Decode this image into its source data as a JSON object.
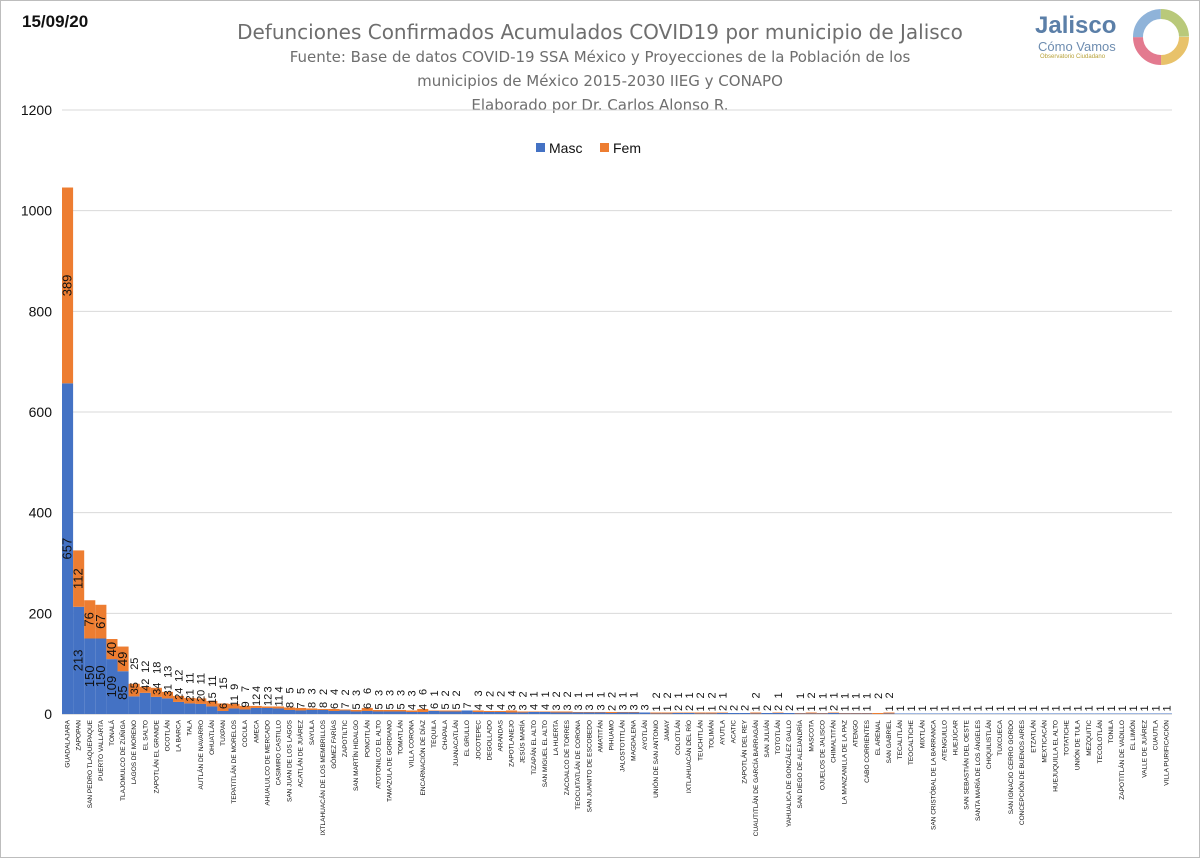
{
  "date": "15/09/20",
  "logo": {
    "name": "Jalisco",
    "subtitle": "Cómo Vamos",
    "tagline": "Observatorio Ciudadano"
  },
  "colors": {
    "masc": "#4472c4",
    "fem": "#ed7d31",
    "grid": "#d9d9d9",
    "text": "#595959"
  },
  "chart_data": {
    "type": "bar",
    "stacked": true,
    "title": "Defunciones Confirmados Acumulados COVID19 por municipio de Jalisco",
    "subtitle": [
      "Fuente: Base de datos COVID-19 SSA México y Proyecciones de la Población de los",
      "municipios de México 2015-2030 IIEG y CONAPO",
      "Elaborado por Dr. Carlos Alonso R."
    ],
    "xlabel": "",
    "ylabel": "",
    "ylim": [
      0,
      1200
    ],
    "yticks": [
      0,
      200,
      400,
      600,
      800,
      1000,
      1200
    ],
    "grid": true,
    "legend_position": "top-center",
    "categories": [
      "GUADALAJARA",
      "ZAPOPAN",
      "SAN PEDRO TLAQUEPAQUE",
      "PUERTO VALLARTA",
      "TONALÁ",
      "TLAJOMULCO DE ZÚÑIGA",
      "LAGOS DE MORENO",
      "EL SALTO",
      "ZAPOTLÁN EL GRANDE",
      "OCOTLÁN",
      "LA BARCA",
      "TALA",
      "AUTLÁN DE NAVARRO",
      "OHUATLÁN",
      "TUXPAN",
      "TEPATITLÁN DE MORELOS",
      "COCULA",
      "AMECA",
      "AHUALULCO DE MERCADO",
      "CASIMIRO CASTILLO",
      "SAN JUAN DE LOS LAGOS",
      "ACATLÁN DE JUÁREZ",
      "SAYULA",
      "IXTLAHUACÁN DE LOS MEMBRILLOS",
      "GÓMEZ FARÍAS",
      "ZAPOTILTIC",
      "SAN MARTÍN HIDALGO",
      "PONCITLÁN",
      "ATOTONILCO EL ALTO",
      "TAMAZULA DE GORDIANO",
      "TOMATLÁN",
      "VILLA CORONA",
      "ENCARNACIÓN DE DÍAZ",
      "TEQUILA",
      "CHAPALA",
      "JUANACATLÁN",
      "EL GRULLO",
      "JOCOTEPEC",
      "DEGOLLADO",
      "ARANDAS",
      "ZAPOTLANEJO",
      "JESÚS MARÍA",
      "TIZAPÁN EL ALTO",
      "SAN MIGUEL EL ALTO",
      "LA HUERTA",
      "ZACOALCO DE TORRES",
      "TEOCUITATLÁN DE CORONA",
      "SAN JUANITO DE ESCOBEDO",
      "AMATITÁN",
      "PIHUAMO",
      "JALOSTOTITLÁN",
      "MAGDALENA",
      "AYOTLÁN",
      "UNIÓN DE SAN ANTONIO",
      "JAMAY",
      "COLOTLÁN",
      "IXTLAHUACÁN DEL RÍO",
      "TEUCHITLÁN",
      "TOLIMÁN",
      "AYUTLA",
      "ACATIC",
      "ZAPOTLÁN DEL REY",
      "CUAUTITLÁN DE GARCÍA BARRAGÁN",
      "SAN JULIÁN",
      "TOTOTLÁN",
      "YAHUALICA DE GONZÁLEZ GALLO",
      "SAN DIEGO DE ALEJANDRÍA",
      "MASCOTA",
      "OJUELOS DE JALISCO",
      "CHIMALTITÁN",
      "LA MANZANILLA DE LA PAZ",
      "ATENGO",
      "CABO CORRIENTES",
      "EL ARENAL",
      "SAN GABRIEL",
      "TECALITLÁN",
      "TEOCALTICHE",
      "MIXTLÁN",
      "SAN CRISTÓBAL DE LA BARRANCA",
      "ATENGUILLO",
      "HUEJÚCAR",
      "SAN SEBASTIÁN DEL OESTE",
      "SANTA MARÍA DE LOS ÁNGELES",
      "CHIQUILISTLÁN",
      "TUXCUECA",
      "SAN IGNACIO CERRO GORDO",
      "CONCEPCIÓN DE BUENOS AIRES",
      "ETZATLÁN",
      "MEXTICACÁN",
      "HUEJUQUILLA EL ALTO",
      "TOTATICHE",
      "UNIÓN DE TULA",
      "MEZQUITIC",
      "TECOLOTLÁN",
      "TONILA",
      "ZAPOTITLÁN DE VADILLO",
      "EL LIMÓN",
      "VALLE DE JUÁREZ",
      "CUAUTLA",
      "VILLA PURIFICACIÓN"
    ],
    "series": [
      {
        "name": "Masc",
        "values": [
          657,
          213,
          150,
          150,
          109,
          85,
          35,
          42,
          34,
          31,
          24,
          21,
          20,
          15,
          6,
          11,
          9,
          12,
          12,
          11,
          8,
          7,
          8,
          8,
          6,
          7,
          5,
          6,
          5,
          5,
          5,
          4,
          4,
          6,
          5,
          5,
          7,
          4,
          4,
          4,
          3,
          3,
          4,
          4,
          3,
          3,
          3,
          3,
          3,
          2,
          3,
          3,
          3,
          1,
          1,
          2,
          2,
          1,
          1,
          2,
          2,
          2,
          1,
          2,
          2,
          2,
          1,
          1,
          1,
          2,
          1,
          1,
          1,
          0,
          1,
          1,
          1,
          1,
          1,
          1,
          1,
          1,
          1,
          1,
          1,
          1,
          1,
          1,
          1,
          1,
          1,
          1,
          1,
          1,
          1,
          1,
          1,
          1,
          1,
          1
        ]
      },
      {
        "name": "Fem",
        "values": [
          389,
          112,
          76,
          67,
          40,
          49,
          25,
          12,
          18,
          13,
          12,
          11,
          11,
          11,
          15,
          9,
          7,
          4,
          3,
          4,
          5,
          5,
          3,
          2,
          4,
          2,
          3,
          6,
          3,
          3,
          3,
          3,
          6,
          1,
          2,
          2,
          0,
          3,
          2,
          2,
          4,
          2,
          1,
          1,
          2,
          2,
          1,
          1,
          1,
          2,
          1,
          1,
          0,
          2,
          2,
          1,
          1,
          2,
          2,
          1,
          0,
          0,
          2,
          0,
          1,
          0,
          1,
          2,
          1,
          1,
          1,
          1,
          1,
          2,
          2,
          0,
          0,
          0,
          0,
          0,
          0,
          0,
          0,
          0,
          0,
          0,
          0,
          0,
          0,
          0,
          0,
          0,
          0,
          0,
          0,
          0,
          0,
          0,
          0,
          0
        ]
      }
    ]
  }
}
